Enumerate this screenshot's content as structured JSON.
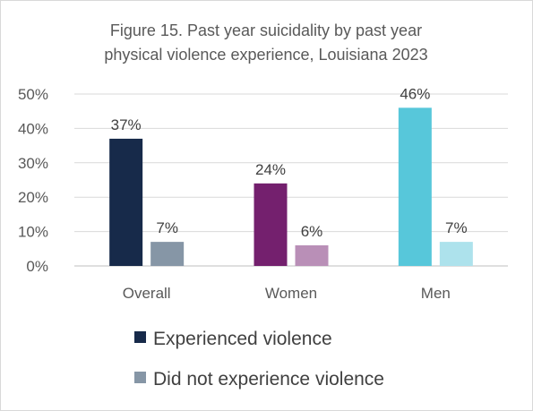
{
  "chart_data": {
    "type": "bar",
    "title": [
      "Figure 15. Past year suicidality by past year",
      "physical violence experience, Louisiana 2023"
    ],
    "categories": [
      "Overall",
      "Women",
      "Men"
    ],
    "series": [
      {
        "name": "Experienced violence",
        "values": [
          37,
          24,
          46
        ],
        "labels": [
          "37%",
          "24%",
          "46%"
        ],
        "colors": [
          "#172a4a",
          "#74206e",
          "#57c7da"
        ]
      },
      {
        "name": "Did not experience violence",
        "values": [
          7,
          6,
          7
        ],
        "labels": [
          "7%",
          "6%",
          "7%"
        ],
        "colors": [
          "#8696a6",
          "#b98fb7",
          "#ade2ec"
        ]
      }
    ],
    "y_ticks": [
      "0%",
      "10%",
      "20%",
      "30%",
      "40%",
      "50%"
    ],
    "ylim": [
      0,
      50
    ],
    "grid": true,
    "legend": {
      "position": "bottom",
      "items": [
        "Experienced violence",
        "Did not experience violence"
      ],
      "colors": [
        "#172a4a",
        "#8696a6"
      ]
    }
  }
}
